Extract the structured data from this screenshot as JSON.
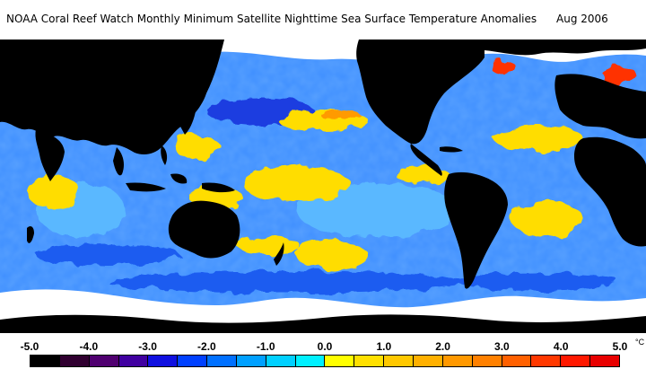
{
  "title": {
    "text": "NOAA Coral Reef Watch Monthly Minimum Satellite Nighttime Sea Surface Temperature Anomalies",
    "date": "Aug 2006"
  },
  "legend": {
    "ticks": [
      "-5.0",
      "-4.0",
      "-3.0",
      "-2.0",
      "-1.0",
      "0.0",
      "1.0",
      "2.0",
      "3.0",
      "4.0",
      "5.0"
    ],
    "unit": "°C",
    "colors": [
      "#000000",
      "#300030",
      "#500070",
      "#4000a0",
      "#1010e0",
      "#0040ff",
      "#0070ff",
      "#00a0ff",
      "#00d0ff",
      "#00f0ff",
      "#ffff00",
      "#ffe000",
      "#ffc800",
      "#ffb000",
      "#ff9800",
      "#ff8000",
      "#ff6000",
      "#ff3800",
      "#ff1800",
      "#e80000"
    ]
  },
  "map": {
    "ocean_colors": {
      "base": "#3f8fff",
      "deep": "#1a5cf0",
      "cool": "#5ab8ff",
      "warm": "#ffdd00",
      "hot": "#ff9a00",
      "very_hot": "#ff3000"
    },
    "land_color": "#000000",
    "ice_color": "#ffffff"
  }
}
